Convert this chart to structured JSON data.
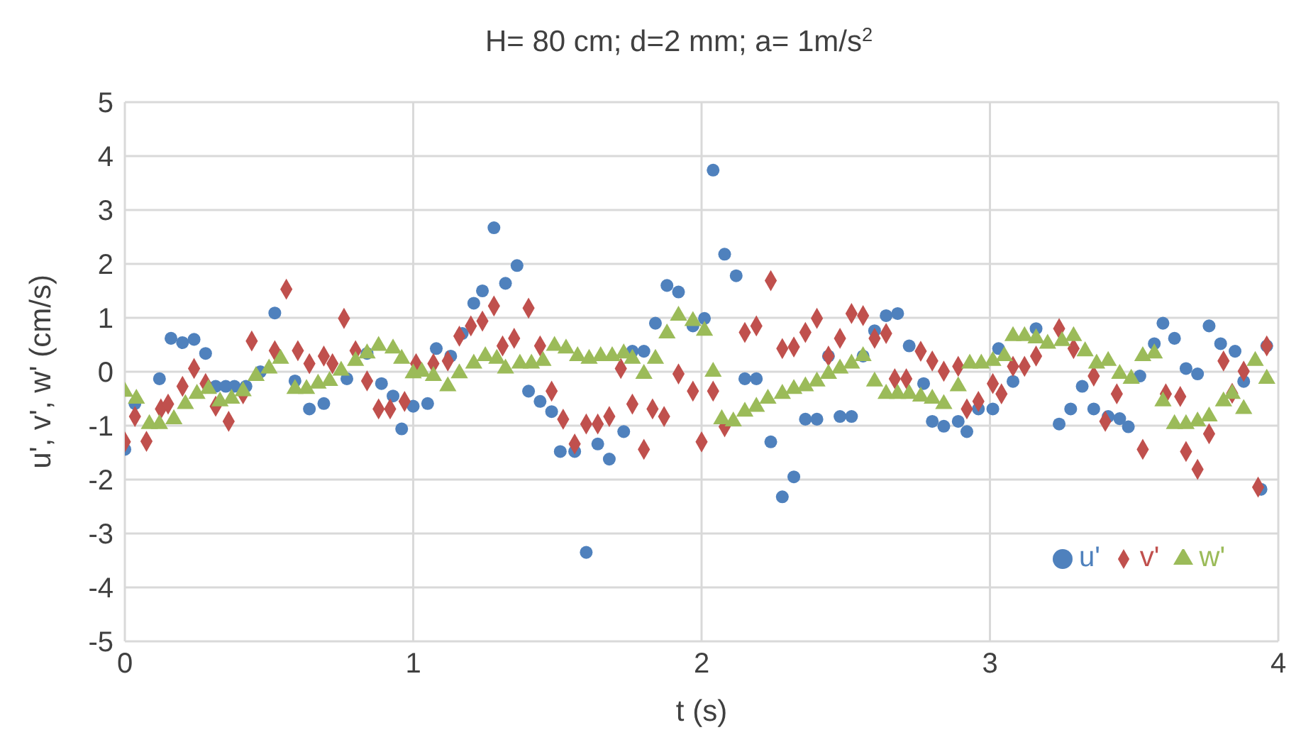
{
  "chart_data": {
    "type": "scatter",
    "title": "H= 80 cm; d=2 mm; a= 1m/s$^{2}$",
    "xlabel": "t (s)",
    "ylabel": "u', v', w' (cm/s)",
    "xlim": [
      0,
      4
    ],
    "xticks": [
      0,
      1,
      2,
      3,
      4
    ],
    "ylim": [
      -5,
      5
    ],
    "yticks": [
      -5,
      -4,
      -3,
      -2,
      -1,
      0,
      1,
      2,
      3,
      4,
      5
    ],
    "grid": true,
    "legend": "bottom right",
    "series": [
      {
        "name": "u'",
        "color": "#4f81bd",
        "marker": "circle",
        "x": [
          0,
          0.035,
          0.12,
          0.16,
          0.2,
          0.24,
          0.28,
          0.315,
          0.35,
          0.38,
          0.42,
          0.47,
          0.52,
          0.59,
          0.64,
          0.69,
          0.77,
          0.84,
          0.89,
          0.93,
          0.96,
          1.0,
          1.05,
          1.08,
          1.13,
          1.17,
          1.21,
          1.24,
          1.28,
          1.32,
          1.36,
          1.4,
          1.44,
          1.48,
          1.51,
          1.56,
          1.6,
          1.64,
          1.68,
          1.73,
          1.76,
          1.8,
          1.84,
          1.88,
          1.92,
          1.97,
          2.01,
          2.04,
          2.08,
          2.12,
          2.15,
          2.19,
          2.24,
          2.28,
          2.32,
          2.36,
          2.4,
          2.44,
          2.48,
          2.52,
          2.56,
          2.6,
          2.64,
          2.68,
          2.72,
          2.77,
          2.8,
          2.84,
          2.89,
          2.92,
          2.96,
          3.01,
          3.03,
          3.08,
          3.16,
          3.24,
          3.28,
          3.32,
          3.36,
          3.41,
          3.45,
          3.48,
          3.52,
          3.57,
          3.6,
          3.64,
          3.68,
          3.72,
          3.76,
          3.8,
          3.85,
          3.88,
          3.94,
          3.96
        ],
        "values": [
          -1.44,
          -0.59,
          -0.13,
          0.62,
          0.54,
          0.6,
          0.34,
          -0.27,
          -0.27,
          -0.27,
          -0.27,
          0,
          1.09,
          -0.17,
          -0.69,
          -0.59,
          -0.13,
          0.34,
          -0.22,
          -0.45,
          -1.06,
          -0.64,
          -0.59,
          0.43,
          0.29,
          0.71,
          1.27,
          1.5,
          2.67,
          1.64,
          1.97,
          -0.36,
          -0.55,
          -0.74,
          -1.48,
          -1.48,
          -3.35,
          -1.34,
          -1.62,
          -1.11,
          0.38,
          0.38,
          0.9,
          1.6,
          1.48,
          0.85,
          0.99,
          3.74,
          2.18,
          1.78,
          -0.13,
          -0.13,
          -1.3,
          -2.32,
          -1.95,
          -0.88,
          -0.88,
          0.29,
          -0.83,
          -0.83,
          0.29,
          0.76,
          1.04,
          1.08,
          0.48,
          -0.22,
          -0.92,
          -1.01,
          -0.92,
          -1.11,
          -0.69,
          -0.69,
          0.43,
          -0.18,
          0.8,
          -0.97,
          -0.69,
          -0.27,
          -0.69,
          -0.83,
          -0.87,
          -1.02,
          -0.08,
          0.52,
          0.9,
          0.62,
          0.06,
          -0.04,
          0.85,
          0.52,
          0.38,
          -0.18,
          -2.18,
          0.48
        ]
      },
      {
        "name": "v'",
        "color": "#c0504d",
        "marker": "diamond",
        "x": [
          0,
          0.035,
          0.075,
          0.125,
          0.15,
          0.2,
          0.24,
          0.28,
          0.315,
          0.36,
          0.41,
          0.44,
          0.52,
          0.56,
          0.6,
          0.64,
          0.69,
          0.72,
          0.76,
          0.8,
          0.84,
          0.88,
          0.92,
          0.97,
          1.01,
          1.07,
          1.12,
          1.16,
          1.2,
          1.24,
          1.28,
          1.31,
          1.35,
          1.4,
          1.44,
          1.48,
          1.52,
          1.56,
          1.6,
          1.64,
          1.68,
          1.72,
          1.76,
          1.8,
          1.83,
          1.87,
          1.92,
          1.97,
          2.0,
          2.04,
          2.08,
          2.15,
          2.19,
          2.24,
          2.28,
          2.32,
          2.36,
          2.4,
          2.44,
          2.48,
          2.52,
          2.56,
          2.6,
          2.64,
          2.67,
          2.71,
          2.76,
          2.8,
          2.84,
          2.89,
          2.92,
          2.96,
          3.01,
          3.04,
          3.08,
          3.12,
          3.16,
          3.24,
          3.29,
          3.36,
          3.4,
          3.44,
          3.53,
          3.61,
          3.66,
          3.68,
          3.72,
          3.76,
          3.81,
          3.84,
          3.88,
          3.93,
          3.96
        ],
        "values": [
          -1.3,
          -0.83,
          -1.29,
          -0.69,
          -0.6,
          -0.27,
          0.06,
          -0.22,
          -0.64,
          -0.92,
          -0.41,
          0.57,
          0.39,
          1.53,
          0.39,
          0.15,
          0.29,
          0.15,
          0.99,
          0.39,
          -0.17,
          -0.69,
          -0.69,
          -0.55,
          0.15,
          0.15,
          0.2,
          0.66,
          0.85,
          0.94,
          1.22,
          0.48,
          0.62,
          1.18,
          0.48,
          -0.36,
          -0.88,
          -1.34,
          -0.97,
          -0.97,
          -0.83,
          0.06,
          -0.6,
          -1.44,
          -0.69,
          -0.83,
          -0.04,
          -0.36,
          -1.3,
          -0.36,
          -1.02,
          0.73,
          0.85,
          1.69,
          0.43,
          0.46,
          0.73,
          0.99,
          0.29,
          0.62,
          1.08,
          1.04,
          0.62,
          0.71,
          -0.13,
          -0.13,
          0.38,
          0.2,
          0.01,
          0.1,
          -0.69,
          -0.55,
          -0.22,
          -0.41,
          0.1,
          0.1,
          0.29,
          0.8,
          0.43,
          -0.08,
          -0.92,
          -0.41,
          -1.44,
          -0.41,
          -0.46,
          -1.48,
          -1.81,
          -1.15,
          0.2,
          -0.4,
          0.01,
          -2.14,
          0.48
        ]
      },
      {
        "name": "w'",
        "color": "#9bbb59",
        "marker": "triangle",
        "x": [
          0,
          0.04,
          0.085,
          0.12,
          0.17,
          0.21,
          0.25,
          0.29,
          0.33,
          0.37,
          0.41,
          0.455,
          0.5,
          0.54,
          0.59,
          0.63,
          0.67,
          0.71,
          0.75,
          0.8,
          0.84,
          0.88,
          0.93,
          0.96,
          1.0,
          1.03,
          1.07,
          1.12,
          1.16,
          1.21,
          1.25,
          1.29,
          1.32,
          1.37,
          1.41,
          1.45,
          1.49,
          1.53,
          1.57,
          1.61,
          1.65,
          1.69,
          1.73,
          1.76,
          1.8,
          1.84,
          1.88,
          1.92,
          1.97,
          2.01,
          2.04,
          2.07,
          2.11,
          2.15,
          2.19,
          2.23,
          2.28,
          2.32,
          2.36,
          2.4,
          2.44,
          2.48,
          2.52,
          2.56,
          2.6,
          2.64,
          2.68,
          2.72,
          2.76,
          2.8,
          2.84,
          2.89,
          2.93,
          2.97,
          3.01,
          3.05,
          3.08,
          3.12,
          3.16,
          3.2,
          3.25,
          3.29,
          3.33,
          3.37,
          3.41,
          3.45,
          3.49,
          3.53,
          3.57,
          3.6,
          3.64,
          3.68,
          3.72,
          3.76,
          3.81,
          3.84,
          3.88,
          3.92,
          3.96
        ],
        "values": [
          -0.37,
          -0.5,
          -0.97,
          -0.97,
          -0.88,
          -0.6,
          -0.41,
          -0.32,
          -0.55,
          -0.5,
          -0.36,
          -0.08,
          0.06,
          0.24,
          -0.32,
          -0.32,
          -0.22,
          -0.17,
          0.02,
          0.2,
          0.34,
          0.48,
          0.43,
          0.24,
          -0.03,
          0,
          -0.08,
          -0.27,
          -0.03,
          0.15,
          0.29,
          0.24,
          0.06,
          0.15,
          0.15,
          0.2,
          0.48,
          0.43,
          0.29,
          0.24,
          0.29,
          0.29,
          0.34,
          0.24,
          -0.04,
          0.24,
          0.71,
          1.04,
          0.94,
          0.76,
          0,
          -0.88,
          -0.92,
          -0.74,
          -0.65,
          -0.5,
          -0.41,
          -0.32,
          -0.27,
          -0.18,
          -0.04,
          0.06,
          0.15,
          0.29,
          -0.18,
          -0.41,
          -0.41,
          -0.41,
          -0.46,
          -0.5,
          -0.6,
          -0.27,
          0.15,
          0.15,
          0.2,
          0.29,
          0.66,
          0.66,
          0.62,
          0.52,
          0.57,
          0.66,
          0.38,
          0.15,
          0.2,
          -0.04,
          -0.13,
          0.29,
          0.34,
          -0.55,
          -0.97,
          -0.97,
          -0.92,
          -0.83,
          -0.55,
          -0.41,
          -0.69,
          0.2,
          -0.13
        ]
      }
    ]
  }
}
